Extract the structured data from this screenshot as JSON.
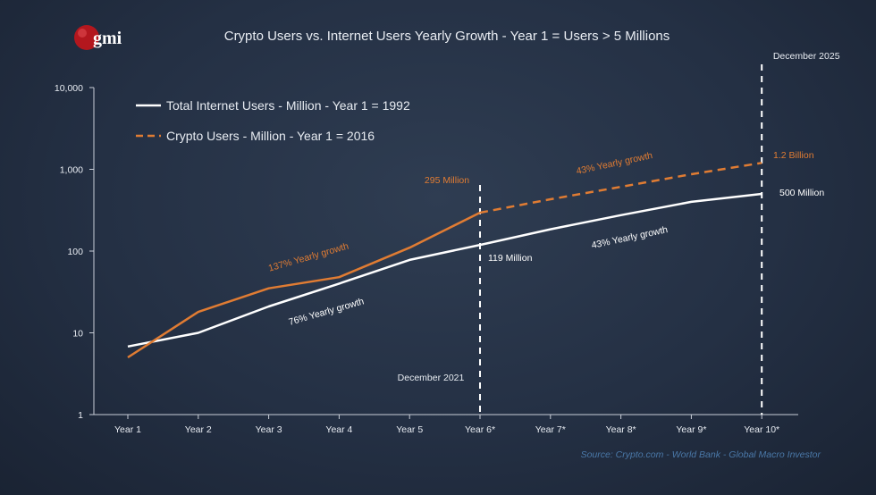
{
  "logo": {
    "text": "gmi",
    "color": "#b3171e"
  },
  "chart_data": {
    "type": "line",
    "title": "Crypto Users vs. Internet Users Yearly Growth - Year 1 = Users > 5 Millions",
    "yscale": "log",
    "ylim": [
      1,
      10000
    ],
    "yticks": [
      "1",
      "10",
      "100",
      "1,000",
      "10,000"
    ],
    "ytick_values": [
      1,
      10,
      100,
      1000,
      10000
    ],
    "categories": [
      "Year 1",
      "Year 2",
      "Year 3",
      "Year 4",
      "Year 5",
      "Year 6*",
      "Year 7*",
      "Year 8*",
      "Year 9*",
      "Year 10*"
    ],
    "series": [
      {
        "name": "Total Internet Users - Million - Year 1 = 1992",
        "color": "#ffffff",
        "style": "solid",
        "values": [
          6.8,
          10,
          21,
          40,
          78,
          119,
          185,
          275,
          400,
          500
        ]
      },
      {
        "name": "Crypto Users - Million - Year 1 = 2016",
        "color": "#e07c33",
        "style": "solid-then-dashed",
        "dash_from_index": 5,
        "values": [
          5,
          18,
          35,
          48,
          110,
          295,
          430,
          610,
          870,
          1200
        ]
      }
    ],
    "legend_position": "top-left",
    "grid": false,
    "vlines": [
      {
        "category_index": 5,
        "label": "December 2021"
      },
      {
        "category_index": 9,
        "label": "December 2025"
      }
    ],
    "annotations": [
      {
        "text": "295 Million",
        "color": "#e07c33"
      },
      {
        "text": "119 Million",
        "color": "#ffffff"
      },
      {
        "text": "1.2 Billion",
        "color": "#e07c33"
      },
      {
        "text": "500 Million",
        "color": "#ffffff"
      },
      {
        "text": "137% Yearly growth",
        "color": "#e07c33"
      },
      {
        "text": "76% Yearly growth",
        "color": "#ffffff"
      },
      {
        "text": "43% Yearly growth",
        "color": "#e07c33"
      },
      {
        "text": "43% Yearly growth",
        "color": "#ffffff"
      }
    ],
    "source": "Source: Crypto.com - World Bank - Global Macro Investor"
  }
}
